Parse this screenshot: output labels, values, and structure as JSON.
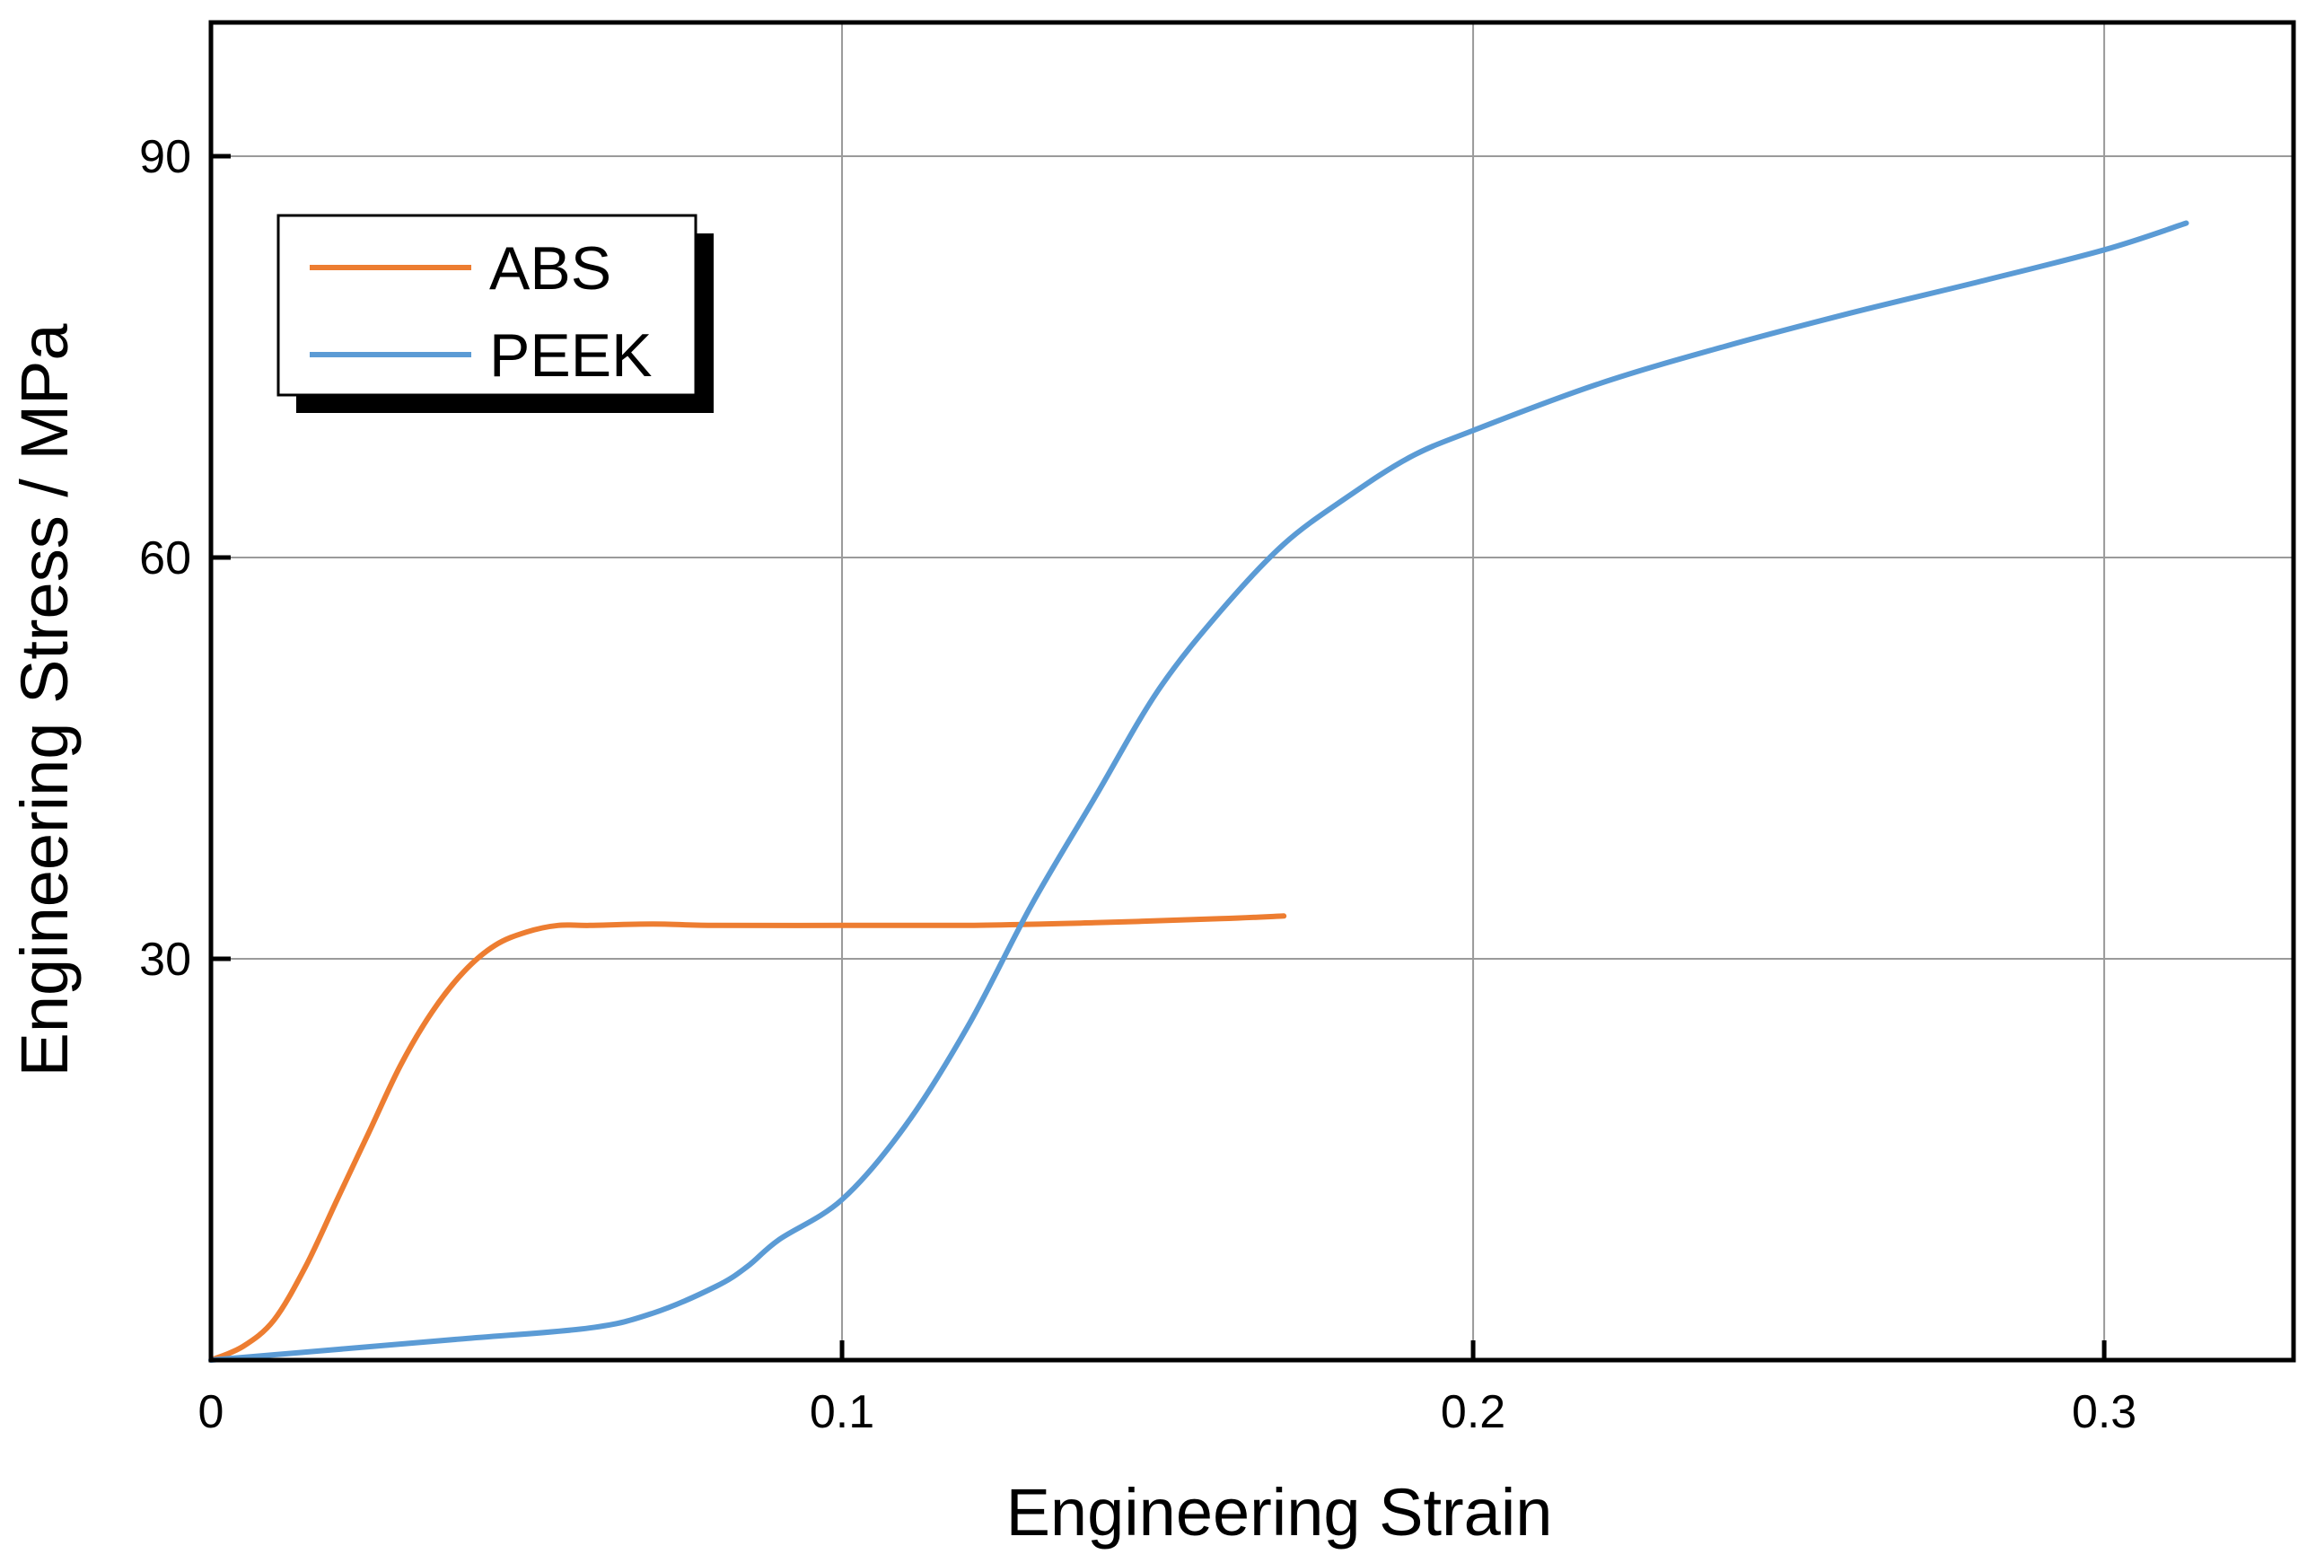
{
  "chart_data": {
    "type": "line",
    "xlabel": "Engineering Strain",
    "ylabel": "Engineering Stress / MPa",
    "xlim": [
      0,
      0.33
    ],
    "ylim": [
      0,
      100
    ],
    "xticks": [
      0,
      0.1,
      0.2,
      0.3
    ],
    "xtick_labels": [
      "0",
      "0.1",
      "0.2",
      "0.3"
    ],
    "yticks": [
      30,
      60,
      90
    ],
    "ytick_labels": [
      "30",
      "60",
      "90"
    ],
    "grid": true,
    "legend_position": "top-left",
    "series": [
      {
        "name": "ABS",
        "color": "#ED7D31",
        "x": [
          0,
          0.005,
          0.01,
          0.015,
          0.02,
          0.025,
          0.03,
          0.035,
          0.04,
          0.045,
          0.05,
          0.055,
          0.06,
          0.07,
          0.08,
          0.1,
          0.12,
          0.14,
          0.16,
          0.17
        ],
        "y": [
          0,
          1,
          3,
          7,
          12,
          17,
          22,
          26,
          29,
          31,
          32,
          32.5,
          32.5,
          32.6,
          32.5,
          32.5,
          32.5,
          32.7,
          33,
          33.2
        ]
      },
      {
        "name": "PEEK",
        "color": "#5B9BD5",
        "x": [
          0,
          0.02,
          0.04,
          0.06,
          0.07,
          0.08,
          0.085,
          0.09,
          0.1,
          0.11,
          0.12,
          0.13,
          0.14,
          0.15,
          0.16,
          0.17,
          0.18,
          0.19,
          0.2,
          0.22,
          0.24,
          0.26,
          0.28,
          0.3,
          0.313
        ],
        "y": [
          0,
          0.8,
          1.6,
          2.4,
          3.5,
          5.5,
          7,
          9,
          12,
          17.5,
          25,
          34,
          42,
          50,
          56,
          61,
          64.5,
          67.5,
          69.5,
          73,
          75.8,
          78.3,
          80.6,
          83,
          85
        ]
      }
    ]
  }
}
